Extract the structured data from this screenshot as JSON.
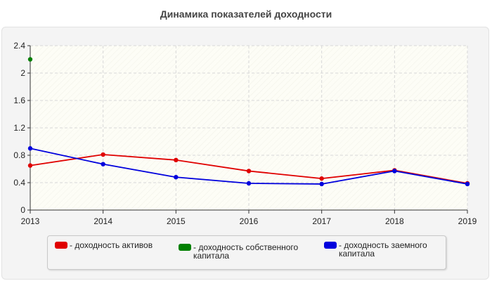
{
  "chart_data": {
    "type": "line",
    "title": "Динамика показателей доходности",
    "categories": [
      "2013",
      "2014",
      "2015",
      "2016",
      "2017",
      "2018",
      "2019"
    ],
    "ylim": [
      0,
      2.4
    ],
    "yticks": [
      "0",
      "0.4",
      "0.8",
      "1.2",
      "1.6",
      "2",
      "2.4"
    ],
    "grid": true,
    "legend_position": "bottom",
    "series": [
      {
        "name": "- доходность активов",
        "color": "#e00000",
        "values": [
          0.65,
          0.81,
          0.73,
          0.57,
          0.46,
          0.58,
          0.39
        ]
      },
      {
        "name": "- доходность собственного капитала",
        "color": "#008000",
        "values": [
          2.2,
          null,
          null,
          null,
          null,
          null,
          null
        ]
      },
      {
        "name": "- доходность заемного капитала",
        "color": "#0000dd",
        "values": [
          0.9,
          0.67,
          0.48,
          0.39,
          0.38,
          0.57,
          0.38
        ]
      }
    ]
  }
}
